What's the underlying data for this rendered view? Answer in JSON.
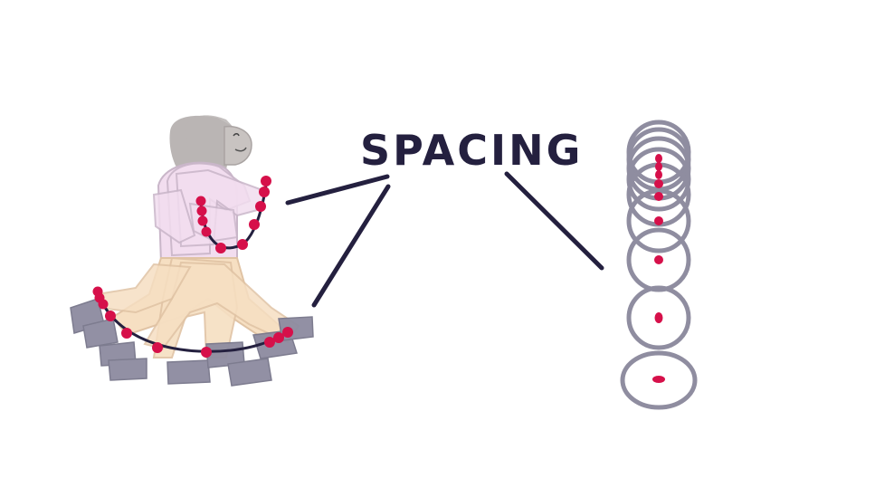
{
  "diagram": {
    "title": "SPACING"
  },
  "colors": {
    "background": "#ffffff",
    "ink": "#24203f",
    "keyframe_dot": "#d6104a",
    "hair": "#b3adac",
    "skin": "#c8c3c1",
    "shirt": "#f2ddef",
    "shirt_outline": "#c9b6c9",
    "pants": "#f6dfc2",
    "pants_outline": "#e0c3a4",
    "shoe": "#8d8ba0",
    "ball_ring": "#8a879b"
  },
  "icons": {
    "figure": "running-woman-onion-skin-icon",
    "ball": "bouncing-ball-onion-skin-icon"
  }
}
